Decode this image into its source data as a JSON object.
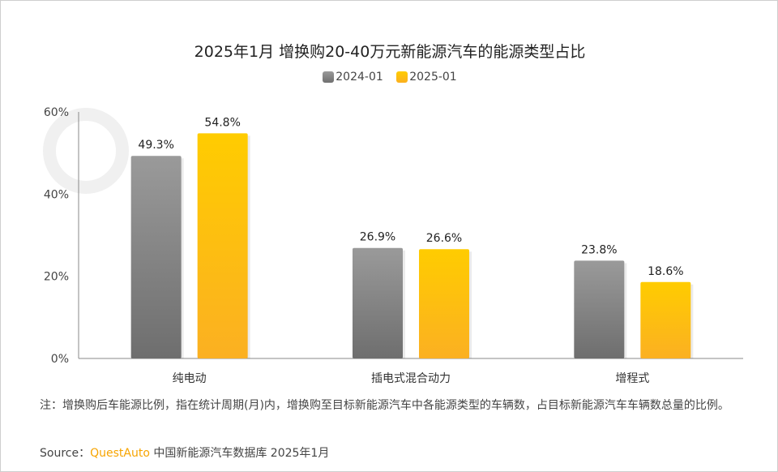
{
  "watermark": "QUEST AUTO",
  "chart_data": {
    "type": "bar",
    "title": "2025年1月 增换购20-40万元新能源汽车的能源类型占比",
    "categories": [
      "纯电动",
      "插电式混合动力",
      "增程式"
    ],
    "series": [
      {
        "name": "2024-01",
        "values": [
          49.3,
          26.9,
          23.8
        ],
        "color": "#7f7f7f"
      },
      {
        "name": "2025-01",
        "values": [
          54.8,
          26.6,
          18.6
        ],
        "color": "#ffc000"
      }
    ],
    "ylim": [
      0,
      60
    ],
    "yticks": [
      "0%",
      "20%",
      "40%",
      "60%"
    ],
    "data_labels": [
      [
        "49.3%",
        "26.9%",
        "23.8%"
      ],
      [
        "54.8%",
        "26.6%",
        "18.6%"
      ]
    ],
    "legend_position": "top",
    "grid": false
  },
  "note": "注：增换购后车能源比例，指在统计周期(月)内，增换购至目标新能源汽车中各能源类型的车辆数，占目标新能源汽车车辆数总量的比例。",
  "source": {
    "label": "Source：",
    "brand": "QuestAuto",
    "text": " 中国新能源汽车数据库 2025年1月"
  }
}
